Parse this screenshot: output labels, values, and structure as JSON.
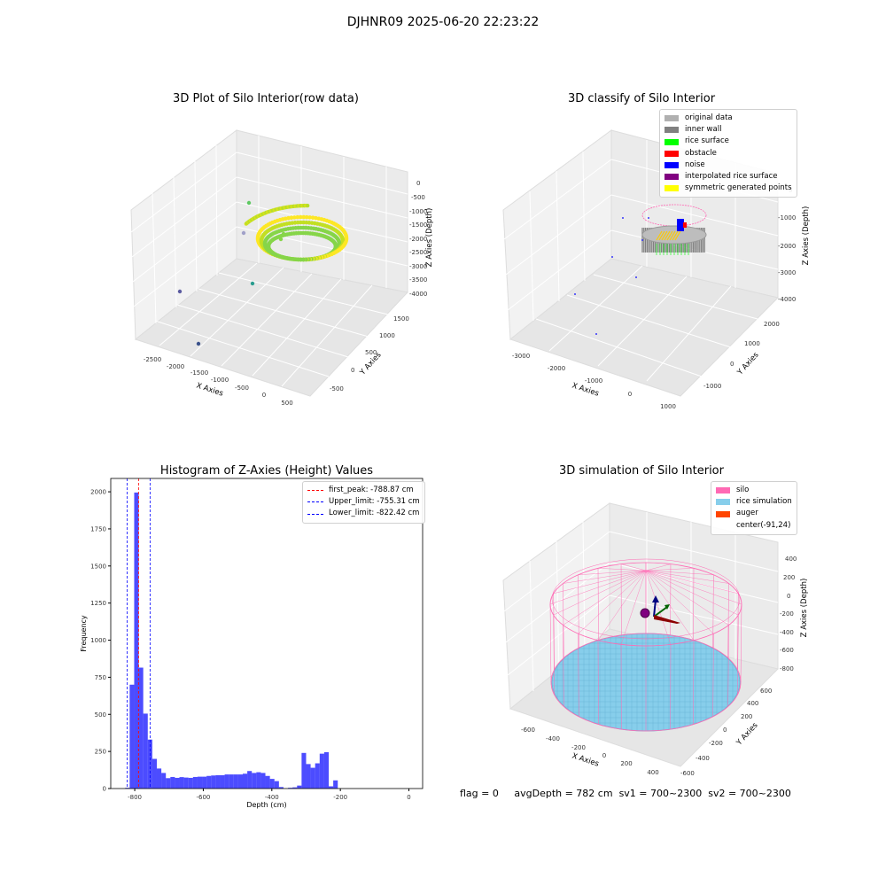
{
  "suptitle": "DJHNR09 2025-06-20 22:23:22",
  "status_text": {
    "flag": "flag = 0",
    "avg_depth": "avgDepth = 782 cm",
    "sv1": "sv1 = 700~2300",
    "sv2": "sv2 = 700~2300"
  },
  "chart_data": [
    {
      "type": "scatter",
      "title": "3D Plot of Silo Interior(row data)",
      "xlabel": "X Axies",
      "ylabel": "Y Axies",
      "zlabel": "Z Axies (Depth)",
      "x_ticks": [
        "-2500",
        "-2000",
        "-1500",
        "-1000",
        "-500",
        "0",
        "500"
      ],
      "y_ticks": [
        "-500",
        "0",
        "500",
        "1000",
        "1500"
      ],
      "z_ticks": [
        "0",
        "-500",
        "-1000",
        "-1500",
        "-2000",
        "-2500",
        "-3000",
        "-3500",
        "-4000"
      ],
      "grid": true,
      "colors": {
        "low": "#440154",
        "mid": "#21918c",
        "high": "#fde725"
      }
    },
    {
      "type": "scatter",
      "title": "3D classify of Silo Interior",
      "xlabel": "X Axies",
      "ylabel": "Y Axies",
      "zlabel": "Z Axies (Depth)",
      "x_ticks": [
        "-3000",
        "-2000",
        "-1000",
        "0",
        "1000"
      ],
      "y_ticks": [
        "-1000",
        "0",
        "1000",
        "2000"
      ],
      "z_ticks": [
        "0",
        "-1000",
        "-2000",
        "-3000",
        "-4000"
      ],
      "grid": true,
      "legend_position": "top-right",
      "legend": [
        {
          "label": "original data",
          "color": "#b0b0b0"
        },
        {
          "label": "inner wall",
          "color": "#808080"
        },
        {
          "label": "rice surface",
          "color": "#00ff00"
        },
        {
          "label": "obstacle",
          "color": "#ff0000"
        },
        {
          "label": "noise",
          "color": "#0000ff"
        },
        {
          "label": "interpolated rice surface",
          "color": "#800080"
        },
        {
          "label": "symmetric generated points",
          "color": "#ffff00"
        }
      ]
    },
    {
      "type": "bar",
      "title": "Histogram of Z-Axies (Height) Values",
      "xlabel": "Depth (cm)",
      "ylabel": "Frequency",
      "xlim": [
        -870,
        40
      ],
      "ylim": [
        0,
        2090
      ],
      "x_ticks": [
        -800,
        -600,
        -400,
        -200,
        0
      ],
      "y_ticks": [
        0,
        250,
        500,
        750,
        1000,
        1250,
        1500,
        1750,
        2000
      ],
      "bar_color": "#0000ff",
      "bin_width": 13.2,
      "bins_start": -828,
      "values": [
        5,
        700,
        1995,
        815,
        505,
        330,
        200,
        135,
        105,
        70,
        78,
        72,
        77,
        74,
        72,
        78,
        80,
        80,
        85,
        88,
        90,
        90,
        95,
        95,
        95,
        95,
        100,
        118,
        105,
        110,
        105,
        85,
        65,
        50,
        10,
        0,
        5,
        8,
        20,
        240,
        165,
        140,
        170,
        235,
        245,
        15,
        55
      ],
      "vlines": [
        {
          "label": "first_peak: -788.87 cm",
          "x": -788.87,
          "color": "#ff0000"
        },
        {
          "label": "Upper_limit: -755.31 cm",
          "x": -755.31,
          "color": "#0000ff"
        },
        {
          "label": "Lower_limit: -822.42 cm",
          "x": -822.42,
          "color": "#0000ff"
        }
      ],
      "legend_position": "top-right"
    },
    {
      "type": "surface",
      "title": "3D simulation of Silo Interior",
      "xlabel": "X Axies",
      "ylabel": "Y Axies",
      "zlabel": "Z Axies (Depth)",
      "x_ticks": [
        "-600",
        "-400",
        "-200",
        "0",
        "200",
        "400"
      ],
      "y_ticks": [
        "-600",
        "-400",
        "-200",
        "0",
        "200",
        "400",
        "600"
      ],
      "z_ticks": [
        "400",
        "200",
        "0",
        "-200",
        "-400",
        "-600",
        "-800"
      ],
      "grid": true,
      "legend_position": "top-right",
      "legend": [
        {
          "label": "silo",
          "color": "#ff69b4"
        },
        {
          "label": "rice simulation",
          "color": "#87ceeb"
        },
        {
          "label": "auger",
          "color": "#ff4500"
        },
        {
          "label": "center(-91,24)",
          "color": ""
        }
      ]
    }
  ]
}
